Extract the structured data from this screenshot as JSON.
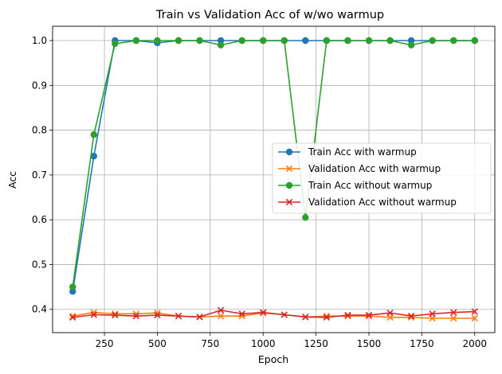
{
  "chart_data": {
    "type": "line",
    "title": "Train vs Validation Acc of w/wo warmup",
    "xlabel": "Epoch",
    "ylabel": "Acc",
    "x": [
      100,
      200,
      300,
      400,
      500,
      600,
      700,
      800,
      900,
      1000,
      1100,
      1200,
      1300,
      1400,
      1500,
      1600,
      1700,
      1800,
      1900,
      2000
    ],
    "xlim": [
      5,
      2095
    ],
    "ylim": [
      0.348,
      1.032
    ],
    "xticks": [
      250,
      500,
      750,
      1000,
      1250,
      1500,
      1750,
      2000
    ],
    "yticks": [
      0.4,
      0.5,
      0.6,
      0.7,
      0.8,
      0.9,
      1.0
    ],
    "xtick_labels": [
      "250",
      "500",
      "750",
      "1000",
      "1250",
      "1500",
      "1750",
      "2000"
    ],
    "ytick_labels": [
      "0.4",
      "0.5",
      "0.6",
      "0.7",
      "0.8",
      "0.9",
      "1.0"
    ],
    "grid": true,
    "legend_position": "center-right",
    "series": [
      {
        "name": "Train Acc with warmup",
        "marker": "circle",
        "color": "#1f77b4",
        "values": [
          0.44,
          0.742,
          1.0,
          1.0,
          0.995,
          1.0,
          1.0,
          1.0,
          1.0,
          1.0,
          1.0,
          1.0,
          1.0,
          1.0,
          1.0,
          1.0,
          1.0,
          1.0,
          1.0,
          1.0
        ]
      },
      {
        "name": "Validation Acc with warmup",
        "marker": "x",
        "color": "#ff7f0e",
        "values": [
          0.385,
          0.393,
          0.39,
          0.39,
          0.392,
          0.385,
          0.383,
          0.385,
          0.385,
          0.392,
          0.388,
          0.383,
          0.385,
          0.385,
          0.385,
          0.382,
          0.382,
          0.38,
          0.38,
          0.38
        ]
      },
      {
        "name": "Train Acc without warmup",
        "marker": "circle",
        "color": "#2ca02c",
        "values": [
          0.45,
          0.79,
          0.993,
          1.0,
          1.0,
          1.0,
          1.0,
          0.99,
          1.0,
          1.0,
          1.0,
          0.605,
          1.0,
          1.0,
          1.0,
          1.0,
          0.99,
          1.0,
          1.0,
          1.0
        ]
      },
      {
        "name": "Validation Acc without warmup",
        "marker": "x",
        "color": "#d62728",
        "values": [
          0.382,
          0.388,
          0.387,
          0.385,
          0.387,
          0.385,
          0.383,
          0.398,
          0.39,
          0.393,
          0.388,
          0.383,
          0.382,
          0.387,
          0.387,
          0.392,
          0.385,
          0.39,
          0.393,
          0.395
        ]
      }
    ]
  }
}
